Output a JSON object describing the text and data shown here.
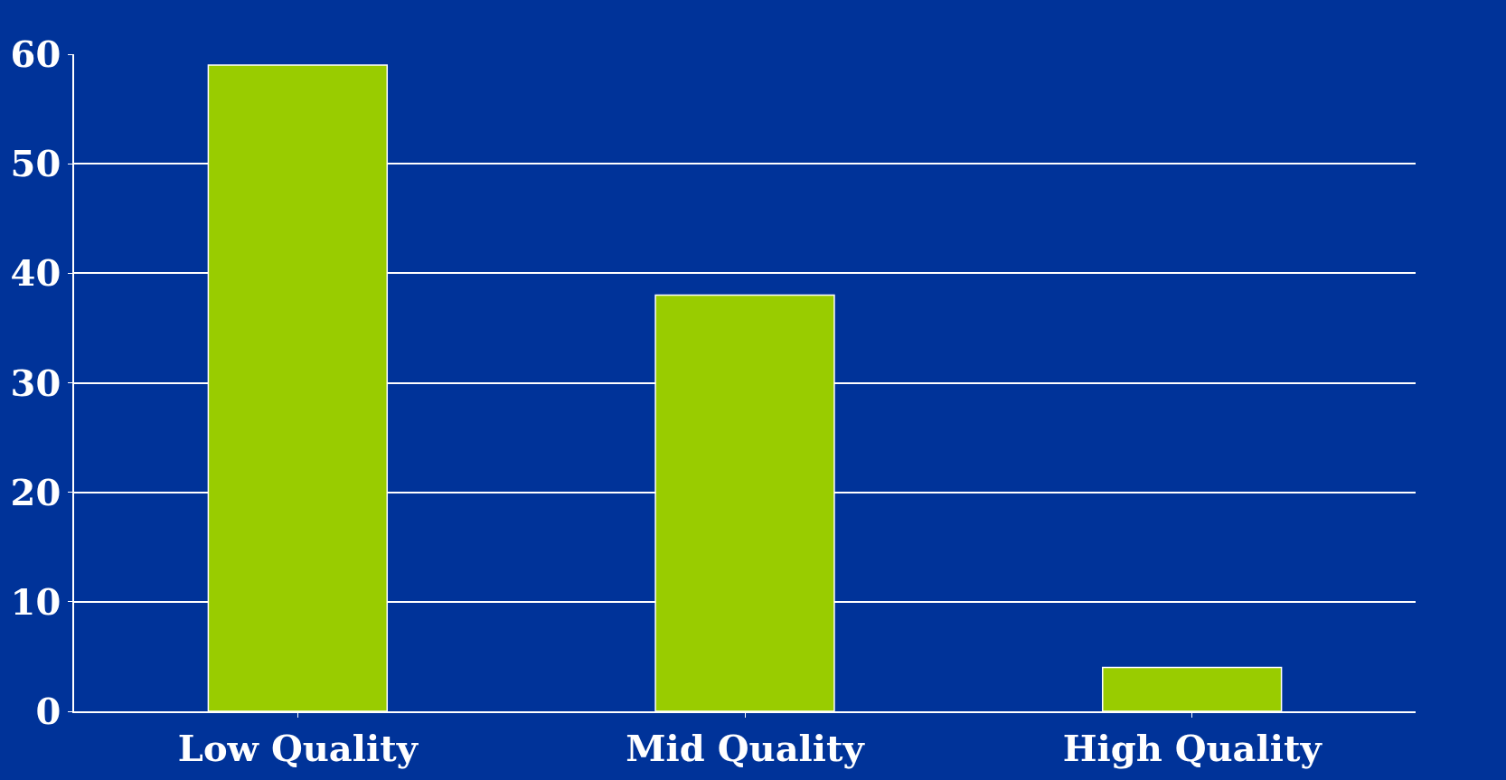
{
  "chart_data": {
    "type": "bar",
    "categories": [
      "Low Quality",
      "Mid Quality",
      "High Quality"
    ],
    "values": [
      59,
      38,
      4
    ],
    "color": "#99cc00",
    "ylim": [
      0,
      60
    ],
    "yticks": [
      0,
      10,
      20,
      30,
      40,
      50,
      60
    ],
    "grid": "y"
  }
}
